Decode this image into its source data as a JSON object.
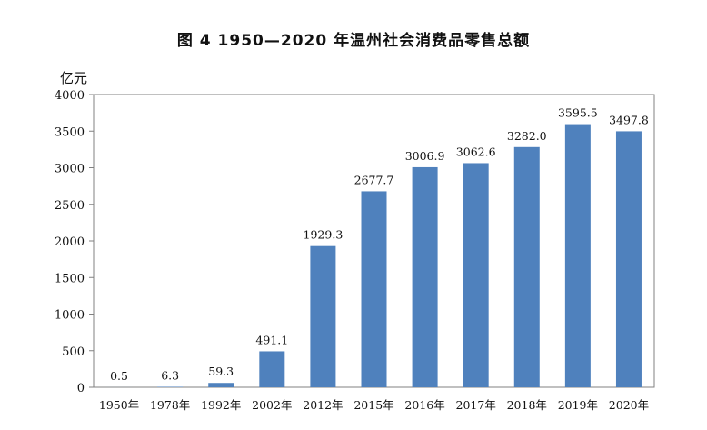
{
  "chart_data": {
    "type": "bar",
    "title": "图 4   1950—2020 年温州社会消费品零售总额",
    "ylabel": "亿元",
    "xlabel": "",
    "categories": [
      "1950年",
      "1978年",
      "1992年",
      "2002年",
      "2012年",
      "2015年",
      "2016年",
      "2017年",
      "2018年",
      "2019年",
      "2020年"
    ],
    "values": [
      0.5,
      6.3,
      59.3,
      491.1,
      1929.3,
      2677.7,
      3006.9,
      3062.6,
      3282.0,
      3595.5,
      3497.8
    ],
    "value_labels": [
      "0.5",
      "6.3",
      "59.3",
      "491.1",
      "1929.3",
      "2677.7",
      "3006.9",
      "3062.6",
      "3282.0",
      "3595.5",
      "3497.8"
    ],
    "ylim": [
      0,
      4000
    ],
    "yticks": [
      "0",
      "500",
      "1000",
      "1500",
      "2000",
      "2500",
      "3000",
      "3500",
      "4000"
    ],
    "grid": false,
    "legend": "none",
    "bar_color": "#4f81bd"
  }
}
